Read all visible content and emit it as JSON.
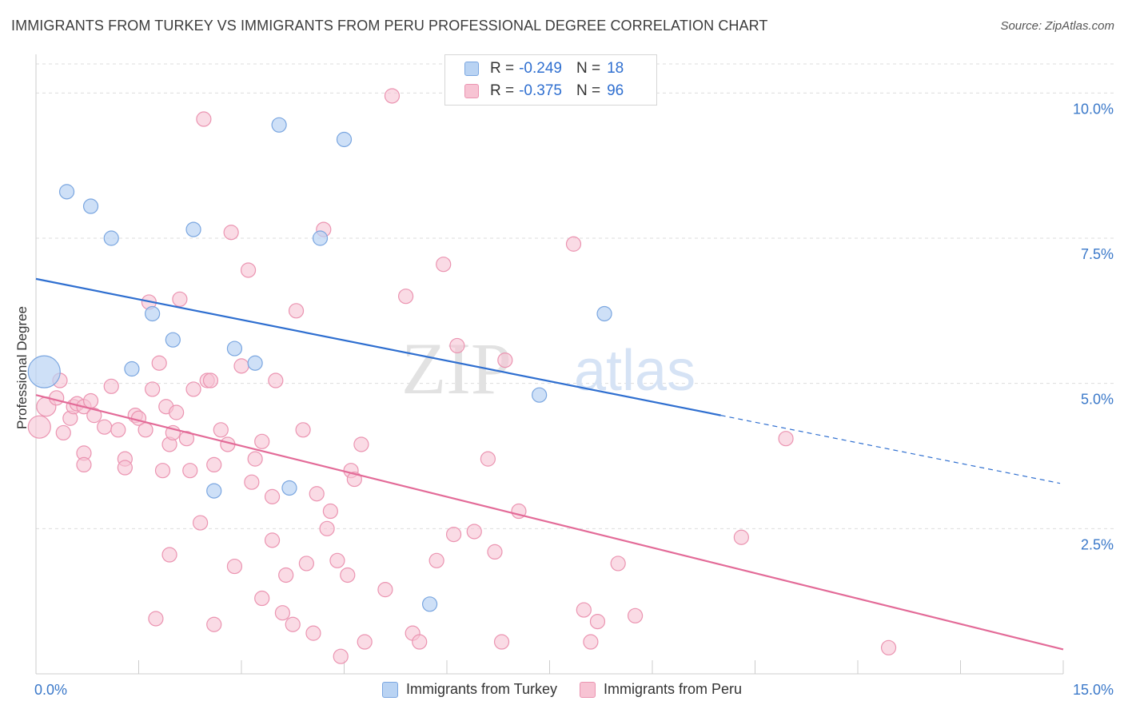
{
  "title": "IMMIGRANTS FROM TURKEY VS IMMIGRANTS FROM PERU PROFESSIONAL DEGREE CORRELATION CHART",
  "source": "Source: ZipAtlas.com",
  "watermark": {
    "zip": "ZIP",
    "atlas": "atlas"
  },
  "legend": {
    "turkey": {
      "r_label": "R =",
      "r_value": "-0.249",
      "n_label": "N =",
      "n_value": "18"
    },
    "peru": {
      "r_label": "R =",
      "r_value": "-0.375",
      "n_label": "N =",
      "n_value": "96"
    }
  },
  "colors": {
    "turkey_fill": "#b9d3f3",
    "turkey_stroke": "#7aa6e0",
    "turkey_line": "#2f6fd0",
    "peru_fill": "#f7c3d3",
    "peru_stroke": "#eb94b1",
    "peru_line": "#e36b98",
    "axis_text": "#3a78c9",
    "grid": "#dddddd"
  },
  "chart_data": {
    "type": "scatter",
    "title": "IMMIGRANTS FROM TURKEY VS IMMIGRANTS FROM PERU PROFESSIONAL DEGREE CORRELATION CHART",
    "xlabel": "",
    "ylabel": "Professional Degree",
    "xlim": [
      0,
      15
    ],
    "ylim": [
      0,
      10.5
    ],
    "x_tick_labels": [
      {
        "value": 0,
        "label": "0.0%"
      },
      {
        "value": 15,
        "label": "15.0%"
      }
    ],
    "y_tick_labels": [
      {
        "value": 2.5,
        "label": "2.5%"
      },
      {
        "value": 5.0,
        "label": "5.0%"
      },
      {
        "value": 7.5,
        "label": "7.5%"
      },
      {
        "value": 10.0,
        "label": "10.0%"
      }
    ],
    "grid": true,
    "legend_position": "top-center",
    "series": [
      {
        "name": "Immigrants from Turkey",
        "color": "#b9d3f3",
        "points": [
          [
            0.12,
            5.2,
            20
          ],
          [
            0.45,
            8.3,
            9
          ],
          [
            0.8,
            8.05,
            9
          ],
          [
            1.1,
            7.5,
            9
          ],
          [
            2.3,
            7.65,
            9
          ],
          [
            1.7,
            6.2,
            9
          ],
          [
            2.0,
            5.75,
            9
          ],
          [
            1.4,
            5.25,
            9
          ],
          [
            2.9,
            5.6,
            9
          ],
          [
            3.2,
            5.35,
            9
          ],
          [
            3.55,
            9.45,
            9
          ],
          [
            4.5,
            9.2,
            9
          ],
          [
            4.15,
            7.5,
            9
          ],
          [
            8.3,
            6.2,
            9
          ],
          [
            7.35,
            4.8,
            9
          ],
          [
            2.6,
            3.15,
            9
          ],
          [
            3.7,
            3.2,
            9
          ],
          [
            5.75,
            1.2,
            9
          ]
        ],
        "trend": {
          "x0": 0,
          "y0": 6.8,
          "x1": 10.0,
          "y1": 4.45,
          "dash_to_x": 15,
          "dash_to_y": 3.28
        }
      },
      {
        "name": "Immigrants from Peru",
        "color": "#f7c3d3",
        "points": [
          [
            0.05,
            4.25,
            14
          ],
          [
            0.15,
            4.6,
            12
          ],
          [
            0.3,
            4.75,
            9
          ],
          [
            0.35,
            5.05,
            9
          ],
          [
            0.4,
            4.15,
            9
          ],
          [
            0.5,
            4.4,
            9
          ],
          [
            0.55,
            4.6,
            9
          ],
          [
            0.6,
            4.65,
            9
          ],
          [
            0.7,
            4.6,
            9
          ],
          [
            0.8,
            4.7,
            9
          ],
          [
            0.85,
            4.45,
            9
          ],
          [
            0.7,
            3.8,
            9
          ],
          [
            0.7,
            3.6,
            9
          ],
          [
            1.0,
            4.25,
            9
          ],
          [
            1.1,
            4.95,
            9
          ],
          [
            1.2,
            4.2,
            9
          ],
          [
            1.3,
            3.7,
            9
          ],
          [
            1.3,
            3.55,
            9
          ],
          [
            1.45,
            4.45,
            9
          ],
          [
            1.5,
            4.4,
            9
          ],
          [
            1.6,
            4.2,
            9
          ],
          [
            1.65,
            6.4,
            9
          ],
          [
            1.7,
            4.9,
            9
          ],
          [
            1.8,
            5.35,
            9
          ],
          [
            1.85,
            3.5,
            9
          ],
          [
            1.9,
            4.6,
            9
          ],
          [
            1.95,
            3.95,
            9
          ],
          [
            2.0,
            4.15,
            9
          ],
          [
            2.05,
            4.5,
            9
          ],
          [
            2.1,
            6.45,
            9
          ],
          [
            2.2,
            4.05,
            9
          ],
          [
            2.25,
            3.5,
            9
          ],
          [
            2.3,
            4.9,
            9
          ],
          [
            2.4,
            2.6,
            9
          ],
          [
            2.45,
            9.55,
            9
          ],
          [
            2.5,
            5.05,
            9
          ],
          [
            2.55,
            5.05,
            9
          ],
          [
            2.6,
            3.6,
            9
          ],
          [
            2.7,
            4.2,
            9
          ],
          [
            2.8,
            3.95,
            9
          ],
          [
            2.85,
            7.6,
            9
          ],
          [
            2.9,
            1.85,
            9
          ],
          [
            3.0,
            5.3,
            9
          ],
          [
            3.1,
            6.95,
            9
          ],
          [
            3.15,
            3.3,
            9
          ],
          [
            3.2,
            3.7,
            9
          ],
          [
            3.3,
            4.0,
            9
          ],
          [
            3.3,
            1.3,
            9
          ],
          [
            3.45,
            2.3,
            9
          ],
          [
            3.5,
            5.05,
            9
          ],
          [
            3.6,
            1.05,
            9
          ],
          [
            3.65,
            1.7,
            9
          ],
          [
            3.75,
            0.85,
            9
          ],
          [
            3.8,
            6.25,
            9
          ],
          [
            3.9,
            4.2,
            9
          ],
          [
            3.95,
            1.9,
            9
          ],
          [
            4.05,
            0.7,
            9
          ],
          [
            4.1,
            3.1,
            9
          ],
          [
            4.2,
            7.65,
            9
          ],
          [
            4.25,
            2.5,
            9
          ],
          [
            4.3,
            2.8,
            9
          ],
          [
            4.4,
            1.95,
            9
          ],
          [
            4.45,
            0.3,
            9
          ],
          [
            4.55,
            1.7,
            9
          ],
          [
            4.6,
            3.5,
            9
          ],
          [
            4.65,
            3.35,
            9
          ],
          [
            4.75,
            3.95,
            9
          ],
          [
            4.8,
            0.55,
            9
          ],
          [
            5.1,
            1.45,
            9
          ],
          [
            5.2,
            9.95,
            9
          ],
          [
            5.4,
            6.5,
            9
          ],
          [
            5.5,
            0.7,
            9
          ],
          [
            5.6,
            0.55,
            9
          ],
          [
            5.85,
            1.95,
            9
          ],
          [
            5.95,
            7.05,
            9
          ],
          [
            6.1,
            2.4,
            9
          ],
          [
            6.15,
            5.65,
            9
          ],
          [
            6.4,
            2.45,
            9
          ],
          [
            6.6,
            3.7,
            9
          ],
          [
            6.7,
            2.1,
            9
          ],
          [
            6.8,
            0.55,
            9
          ],
          [
            6.85,
            5.4,
            9
          ],
          [
            7.05,
            2.8,
            9
          ],
          [
            7.85,
            7.4,
            9
          ],
          [
            8.0,
            1.1,
            9
          ],
          [
            8.1,
            0.55,
            9
          ],
          [
            8.2,
            0.9,
            9
          ],
          [
            8.5,
            1.9,
            9
          ],
          [
            8.75,
            1.0,
            9
          ],
          [
            10.3,
            2.35,
            9
          ],
          [
            10.95,
            4.05,
            9
          ],
          [
            12.45,
            0.45,
            9
          ],
          [
            1.95,
            2.05,
            9
          ],
          [
            1.75,
            0.95,
            9
          ],
          [
            2.6,
            0.85,
            9
          ],
          [
            3.45,
            3.05,
            9
          ]
        ],
        "trend": {
          "x0": 0,
          "y0": 4.8,
          "x1": 15,
          "y1": 0.42
        }
      }
    ]
  },
  "bottom_legend": {
    "turkey": "Immigrants from Turkey",
    "peru": "Immigrants from Peru"
  }
}
